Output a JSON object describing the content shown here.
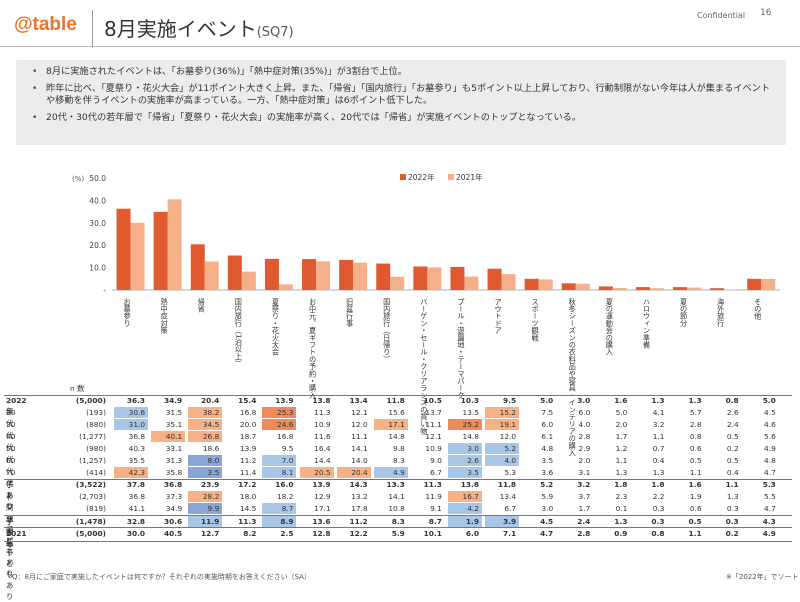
{
  "header": {
    "logo": "@table",
    "title": "8月実施イベント",
    "title_suffix": "(SQ7)",
    "confidential": "Confidential",
    "page": "16"
  },
  "summary": [
    "8月に実施されたイベントは、「お墓参り(36%)」「熱中症対策(35%)」が3割台で上位。",
    "昨年に比べ、「夏祭り・花火大会」が11ポイント大きく上昇。また、「帰省」「国内旅行」「お墓参り」も5ポイント以上上昇しており、行動制限がない今年は人が集まるイベントや移動を伴うイベントの実施率が高まっている。一方、「熱中症対策」は6ポイント低下した。",
    "20代・30代の若年層で「帰省」「夏祭り・花火大会」の実施率が高く、20代では「帰省」が実施イベントのトップとなっている。"
  ],
  "colors": {
    "s2022": "#e15a2f",
    "s2021": "#f5b08a",
    "highlight_orange": "#f7b185",
    "highlight_orange_strong": "#ef8a5c",
    "highlight_blue": "#a8c7e8",
    "highlight_blue_strong": "#8aa6d8"
  },
  "chart_data": {
    "type": "bar",
    "ylabel": "(%)",
    "ylim": [
      0,
      50
    ],
    "yticks": [
      "50.0",
      "40.0",
      "30.0",
      "20.0",
      "10.0",
      "-"
    ],
    "legend_position": "top",
    "categories": [
      "お墓参り",
      "熱中症対策",
      "帰省",
      "国内旅行（1泊以上）",
      "夏祭り・花火大会",
      "お中元、夏ギフトの予約・購入",
      "旧盆行事",
      "国内旅行（日帰り）",
      "バーゲン・セール・クリアランスの買い物",
      "プール・遊園地・テーマパーク",
      "アウトドア",
      "スポーツ観戦",
      "秋冬シーズンの衣料品や寝具・インテリアの購入",
      "夏の運動会の購入",
      "ハロウィン準備",
      "夏の節分",
      "海外旅行",
      "その他"
    ],
    "series": [
      {
        "name": "2022年",
        "values": [
          36.3,
          34.9,
          20.4,
          15.4,
          13.9,
          13.8,
          13.4,
          11.8,
          10.5,
          10.3,
          9.5,
          5.0,
          3.0,
          1.6,
          1.3,
          1.3,
          0.8,
          5.0
        ]
      },
      {
        "name": "2021年",
        "values": [
          30.0,
          40.5,
          12.7,
          8.2,
          2.5,
          12.8,
          12.2,
          5.9,
          10.1,
          6.0,
          7.1,
          4.7,
          2.8,
          0.9,
          0.8,
          1.1,
          0.2,
          4.9
        ]
      }
    ]
  },
  "table": {
    "n_header": "n 数",
    "rows": [
      {
        "label": "2022年",
        "n": "(5,000)",
        "bold": true,
        "values": [
          "36.3",
          "34.9",
          "20.4",
          "15.4",
          "13.9",
          "13.8",
          "13.4",
          "11.8",
          "10.5",
          "10.3",
          "9.5",
          "5.0",
          "3.0",
          "1.6",
          "1.3",
          "1.3",
          "0.8",
          "5.0"
        ],
        "hl": []
      },
      {
        "label": "20代",
        "n": "(193)",
        "bold": false,
        "values": [
          "30.6",
          "31.5",
          "38.2",
          "16.8",
          "25.3",
          "11.3",
          "12.1",
          "15.6",
          "13.7",
          "13.5",
          "15.2",
          "7.5",
          "6.0",
          "5.0",
          "4.1",
          "5.7",
          "2.6",
          "4.5"
        ],
        "hl": [
          "b",
          "",
          "o",
          "",
          "O",
          "",
          "",
          "",
          "",
          "",
          "o",
          "",
          "",
          "",
          "",
          "",
          "",
          ""
        ]
      },
      {
        "label": "30代",
        "n": "(880)",
        "bold": false,
        "values": [
          "31.0",
          "35.1",
          "34.5",
          "20.0",
          "24.6",
          "10.9",
          "12.0",
          "17.1",
          "11.1",
          "25.2",
          "19.1",
          "6.0",
          "4.0",
          "2.0",
          "3.2",
          "2.8",
          "2.4",
          "4.6"
        ],
        "hl": [
          "b",
          "",
          "o",
          "",
          "O",
          "",
          "",
          "o",
          "",
          "O",
          "o",
          "",
          "",
          "",
          "",
          "",
          "",
          ""
        ]
      },
      {
        "label": "40代",
        "n": "(1,277)",
        "bold": false,
        "values": [
          "36.8",
          "40.1",
          "26.8",
          "18.7",
          "16.8",
          "11.6",
          "11.1",
          "14.8",
          "12.1",
          "14.8",
          "12.0",
          "6.1",
          "2.8",
          "1.7",
          "1.1",
          "0.8",
          "0.5",
          "5.6"
        ],
        "hl": [
          "",
          "o",
          "o",
          "",
          "",
          "",
          "",
          "",
          "",
          "",
          "",
          "",
          "",
          "",
          "",
          "",
          "",
          ""
        ]
      },
      {
        "label": "50代",
        "n": "(980)",
        "bold": false,
        "values": [
          "40.3",
          "33.1",
          "18.6",
          "13.9",
          "9.5",
          "16.4",
          "14.1",
          "9.8",
          "10.9",
          "3.0",
          "5.2",
          "4.8",
          "2.9",
          "1.2",
          "0.7",
          "0.6",
          "0.2",
          "4.9"
        ],
        "hl": [
          "",
          "",
          "",
          "",
          "",
          "",
          "",
          "",
          "",
          "b",
          "b",
          "",
          "",
          "",
          "",
          "",
          "",
          ""
        ]
      },
      {
        "label": "60代",
        "n": "(1,257)",
        "bold": false,
        "values": [
          "35.5",
          "31.3",
          "8.0",
          "11.2",
          "7.0",
          "14.4",
          "14.0",
          "8.3",
          "9.0",
          "2.6",
          "4.0",
          "3.5",
          "2.0",
          "1.1",
          "0.4",
          "0.5",
          "0.5",
          "4.8"
        ],
        "hl": [
          "",
          "",
          "B",
          "",
          "b",
          "",
          "",
          "",
          "",
          "b",
          "b",
          "",
          "",
          "",
          "",
          "",
          "",
          ""
        ]
      },
      {
        "label": "70代",
        "n": "(414)",
        "bold": false,
        "values": [
          "42.3",
          "35.8",
          "3.5",
          "11.4",
          "8.1",
          "20.5",
          "20.4",
          "4.9",
          "6.7",
          "3.5",
          "5.3",
          "3.6",
          "3.1",
          "1.3",
          "1.3",
          "1.1",
          "0.4",
          "4.7"
        ],
        "hl": [
          "o",
          "",
          "B",
          "",
          "b",
          "o",
          "o",
          "b",
          "",
          "b",
          "",
          "",
          "",
          "",
          "",
          "",
          "",
          ""
        ]
      },
      {
        "label": "子あり",
        "n": "(3,522)",
        "bold": true,
        "values": [
          "37.8",
          "36.8",
          "23.9",
          "17.2",
          "16.0",
          "13.9",
          "14.3",
          "13.3",
          "11.3",
          "13.8",
          "11.8",
          "5.2",
          "3.2",
          "1.8",
          "1.8",
          "1.6",
          "1.1",
          "5.3"
        ],
        "hl": []
      },
      {
        "label": "├同居子どもあり",
        "n": "(2,703)",
        "bold": false,
        "values": [
          "36.8",
          "37.3",
          "28.2",
          "18.0",
          "18.2",
          "12.9",
          "13.2",
          "14.1",
          "11.9",
          "16.7",
          "13.4",
          "5.9",
          "3.7",
          "2.3",
          "2.2",
          "1.9",
          "1.3",
          "5.5"
        ],
        "hl": [
          "",
          "",
          "o",
          "",
          "",
          "",
          "",
          "",
          "",
          "o",
          "",
          "",
          "",
          "",
          "",
          "",
          "",
          ""
        ]
      },
      {
        "label": "└非同居子どもあり",
        "n": "(819)",
        "bold": false,
        "values": [
          "41.1",
          "34.9",
          "9.9",
          "14.5",
          "8.7",
          "17.1",
          "17.8",
          "10.8",
          "9.1",
          "4.2",
          "6.7",
          "3.0",
          "1.7",
          "0.1",
          "0.3",
          "0.6",
          "0.3",
          "4.7"
        ],
        "hl": [
          "",
          "",
          "B",
          "",
          "b",
          "",
          "",
          "",
          "",
          "b",
          "",
          "",
          "",
          "",
          "",
          "",
          "",
          ""
        ]
      },
      {
        "label": "子なし",
        "n": "(1,478)",
        "bold": true,
        "values": [
          "32.8",
          "30.6",
          "11.9",
          "11.3",
          "8.9",
          "13.6",
          "11.2",
          "8.3",
          "8.7",
          "1.9",
          "3.9",
          "4.5",
          "2.4",
          "1.3",
          "0.3",
          "0.5",
          "0.3",
          "4.3"
        ],
        "hl": [
          "",
          "",
          "b",
          "",
          "b",
          "",
          "",
          "",
          "",
          "b",
          "b",
          "",
          "",
          "",
          "",
          "",
          "",
          ""
        ]
      },
      {
        "label": "2021年",
        "n": "(5,000)",
        "bold": true,
        "values": [
          "30.0",
          "40.5",
          "12.7",
          "8.2",
          "2.5",
          "12.8",
          "12.2",
          "5.9",
          "10.1",
          "6.0",
          "7.1",
          "4.7",
          "2.8",
          "0.9",
          "0.8",
          "1.1",
          "0.2",
          "4.9"
        ],
        "hl": []
      }
    ]
  },
  "footnotes": {
    "question": "Q：8月にご家庭で実施したイベントは何ですか？それぞれの実施時期をお答えください（SA）",
    "sort": "※「2022年」でソート"
  }
}
